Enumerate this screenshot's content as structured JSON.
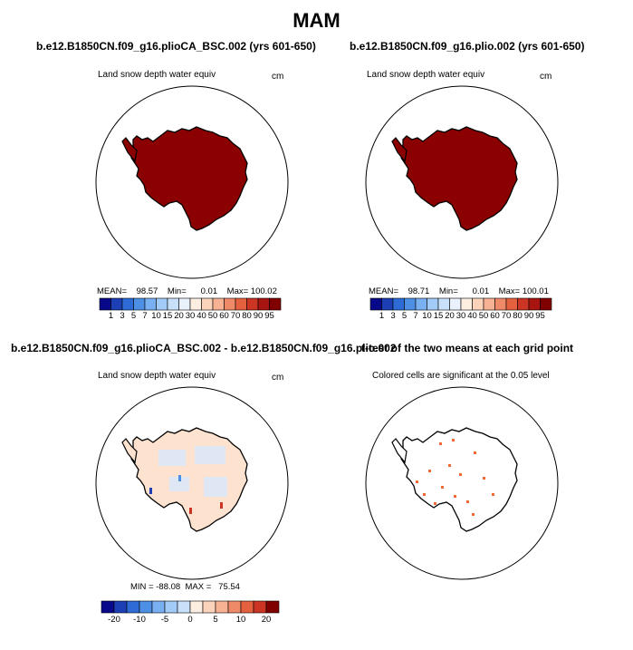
{
  "figure": {
    "title": "MAM"
  },
  "colors": {
    "ocean": "#ffffff",
    "land_outline": "#000000",
    "snow_fill_high": "#8b0000",
    "diff_fill_pos": "#fde3cf",
    "diff_fill_neg": "#dbe7f7",
    "ttest_marks": "#ef6a33"
  },
  "icons": {
    "map_projection": "polar-stereographic-south"
  },
  "panels": {
    "p1": {
      "title": "b.e12.B1850CN.f09_g16.plioCA_BSC.002 (yrs 601-650)",
      "subtitle": "Land snow depth water equiv",
      "units": "cm",
      "stats": {
        "mean_label": "MEAN=",
        "mean": "98.57",
        "min_label": "Min=",
        "min": "0.01",
        "max_label": "Max=",
        "max": "100.02"
      }
    },
    "p2": {
      "title": "b.e12.B1850CN.f09_g16.plio.002 (yrs 601-650)",
      "subtitle": "Land snow depth water equiv",
      "units": "cm",
      "stats": {
        "mean_label": "MEAN=",
        "mean": "98.71",
        "min_label": "Min=",
        "min": "0.01",
        "max_label": "Max=",
        "max": "100.01"
      }
    },
    "p3": {
      "title": "b.e12.B1850CN.f09_g16.plioCA_BSC.002 - b.e12.B1850CN.f09_g16.plio.002",
      "subtitle": "Land snow depth water equiv",
      "units": "cm",
      "stats": {
        "min_label": "MIN =",
        "min": "-88.08",
        "max_label": "MAX =",
        "max": "75.54"
      }
    },
    "p4": {
      "title": "t-test of the two means at each grid point",
      "subtitle": "Colored cells are significant at the 0.05 level"
    }
  },
  "chart_data": [
    {
      "type": "heatmap",
      "title": "b.e12.B1850CN.f09_g16.plioCA_BSC.002 (yrs 601-650)",
      "variable": "Land snow depth water equiv",
      "units": "cm",
      "mean": 98.57,
      "min": 0.01,
      "max": 100.02,
      "colorbar_levels": [
        "1",
        "3",
        "5",
        "7",
        "10",
        "15",
        "20",
        "30",
        "40",
        "50",
        "60",
        "70",
        "80",
        "90",
        "95"
      ],
      "colorbar_colors": [
        "#08088a",
        "#1c3fb5",
        "#2f6bd6",
        "#4e8fe6",
        "#78b0f2",
        "#a3cbf7",
        "#c9e0fa",
        "#e8f1fc",
        "#fdeee2",
        "#fbd3bb",
        "#f6b293",
        "#ef8a68",
        "#e4603f",
        "#cc3523",
        "#a8140f",
        "#800000"
      ],
      "dominant_value_range": "95+"
    },
    {
      "type": "heatmap",
      "title": "b.e12.B1850CN.f09_g16.plio.002 (yrs 601-650)",
      "variable": "Land snow depth water equiv",
      "units": "cm",
      "mean": 98.71,
      "min": 0.01,
      "max": 100.01,
      "colorbar_levels": [
        "1",
        "3",
        "5",
        "7",
        "10",
        "15",
        "20",
        "30",
        "40",
        "50",
        "60",
        "70",
        "80",
        "90",
        "95"
      ],
      "colorbar_colors": [
        "#08088a",
        "#1c3fb5",
        "#2f6bd6",
        "#4e8fe6",
        "#78b0f2",
        "#a3cbf7",
        "#c9e0fa",
        "#e8f1fc",
        "#fdeee2",
        "#fbd3bb",
        "#f6b293",
        "#ef8a68",
        "#e4603f",
        "#cc3523",
        "#a8140f",
        "#800000"
      ],
      "dominant_value_range": "95+"
    },
    {
      "type": "heatmap",
      "title": "b.e12.B1850CN.f09_g16.plioCA_BSC.002 - b.e12.B1850CN.f09_g16.plio.002",
      "variable": "Land snow depth water equiv",
      "units": "cm",
      "min": -88.08,
      "max": 75.54,
      "colorbar_ticks": [
        "-20",
        "-10",
        "-5",
        "0",
        "5",
        "10",
        "20"
      ],
      "colorbar_colors": [
        "#08088a",
        "#1c3fb5",
        "#2f6bd6",
        "#4e8fe6",
        "#78b0f2",
        "#a3cbf7",
        "#c9e0fa",
        "#fdeee2",
        "#fbd3bb",
        "#f6b293",
        "#ef8a68",
        "#e4603f",
        "#cc3523",
        "#800000"
      ]
    },
    {
      "type": "heatmap",
      "title": "t-test of the two means at each grid point",
      "note": "Colored cells are significant at the 0.05 level"
    }
  ]
}
